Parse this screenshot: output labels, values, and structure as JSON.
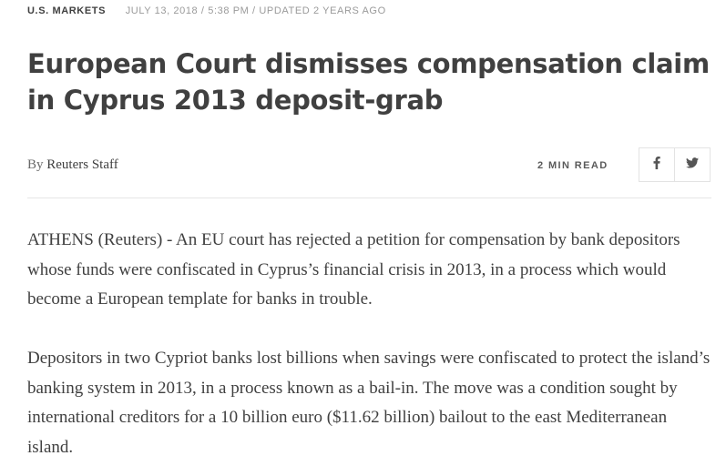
{
  "meta": {
    "section": "U.S. MARKETS",
    "dateline": "JULY 13, 2018 / 5:38 PM / UPDATED 2 YEARS AGO"
  },
  "article": {
    "headline": "European Court dismisses compensation claim in Cyprus 2013 deposit-grab",
    "byline_prefix": "By",
    "author": "Reuters Staff",
    "read_time": "2 MIN READ",
    "paragraphs": [
      "ATHENS (Reuters) - An EU court has rejected a petition for compensation by bank depositors whose funds were confiscated in Cyprus’s financial crisis in 2013, in a process which would become a European template for banks in trouble.",
      "Depositors in two Cypriot banks lost billions when savings were confiscated to protect the island’s banking system in 2013, in a process known as a bail-in. The move was a condition sought by international creditors for a 10 billion euro ($11.62 billion) bailout to the east Mediterranean island."
    ]
  },
  "share": {
    "buttons": [
      {
        "icon": "facebook-icon"
      },
      {
        "icon": "twitter-icon"
      }
    ]
  },
  "colors": {
    "text": "#404040",
    "muted": "#9a9a9a",
    "border": "#e3e3e3"
  }
}
